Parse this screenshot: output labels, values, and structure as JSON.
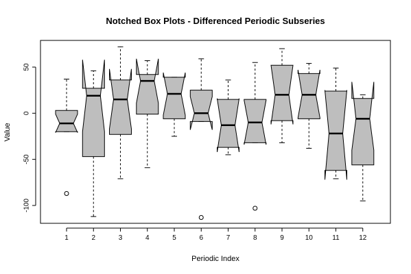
{
  "chart_data": {
    "type": "boxplot",
    "notched": true,
    "title": "Notched Box Plots - Differenced Periodic Subseries",
    "xlabel": "Periodic Index",
    "ylabel": "Value",
    "categories": [
      "1",
      "2",
      "3",
      "4",
      "5",
      "6",
      "7",
      "8",
      "9",
      "10",
      "11",
      "12"
    ],
    "ylim": [
      -120,
      77
    ],
    "yticks": [
      -100,
      -50,
      0,
      50
    ],
    "box_color": "#bebebe",
    "boxes": [
      {
        "min": -20,
        "q1": -20,
        "median": -11,
        "q3": 3,
        "max": 37,
        "notch_lo": -21,
        "notch_hi": -1,
        "outliers": [
          -87
        ]
      },
      {
        "min": -112,
        "q1": -47,
        "median": 19,
        "q3": 27,
        "max": 46,
        "notch_lo": -20,
        "notch_hi": 58,
        "outliers": []
      },
      {
        "min": -71,
        "q1": -23,
        "median": 15,
        "q3": 36,
        "max": 72,
        "notch_lo": -17,
        "notch_hi": 48,
        "outliers": []
      },
      {
        "min": -59,
        "q1": -1,
        "median": 35,
        "q3": 42,
        "max": 57,
        "notch_lo": 11,
        "notch_hi": 59,
        "outliers": []
      },
      {
        "min": -25,
        "q1": -6,
        "median": 21,
        "q3": 39,
        "max": 39,
        "notch_lo": -2,
        "notch_hi": 44,
        "outliers": []
      },
      {
        "min": -9,
        "q1": -9,
        "median": 0,
        "q3": 25,
        "max": 59,
        "notch_lo": -18,
        "notch_hi": 18,
        "outliers": [
          -113
        ]
      },
      {
        "min": -45,
        "q1": -37,
        "median": -13,
        "q3": 15,
        "max": 36,
        "notch_lo": -42,
        "notch_hi": 16,
        "outliers": []
      },
      {
        "min": -32,
        "q1": -32,
        "median": -10,
        "q3": 15,
        "max": 55,
        "notch_lo": -34,
        "notch_hi": 14,
        "outliers": [
          -103
        ]
      },
      {
        "min": -32,
        "q1": -8,
        "median": 20,
        "q3": 52,
        "max": 70,
        "notch_lo": -12,
        "notch_hi": 52,
        "outliers": []
      },
      {
        "min": -38,
        "q1": -6,
        "median": 20,
        "q3": 43,
        "max": 54,
        "notch_lo": -5,
        "notch_hi": 47,
        "outliers": []
      },
      {
        "min": -71,
        "q1": -62,
        "median": -22,
        "q3": 24,
        "max": 49,
        "notch_lo": -72,
        "notch_hi": 25,
        "outliers": []
      },
      {
        "min": -95,
        "q1": -56,
        "median": -6,
        "q3": 16,
        "max": 20,
        "notch_lo": -40,
        "notch_hi": 34,
        "outliers": []
      }
    ]
  }
}
